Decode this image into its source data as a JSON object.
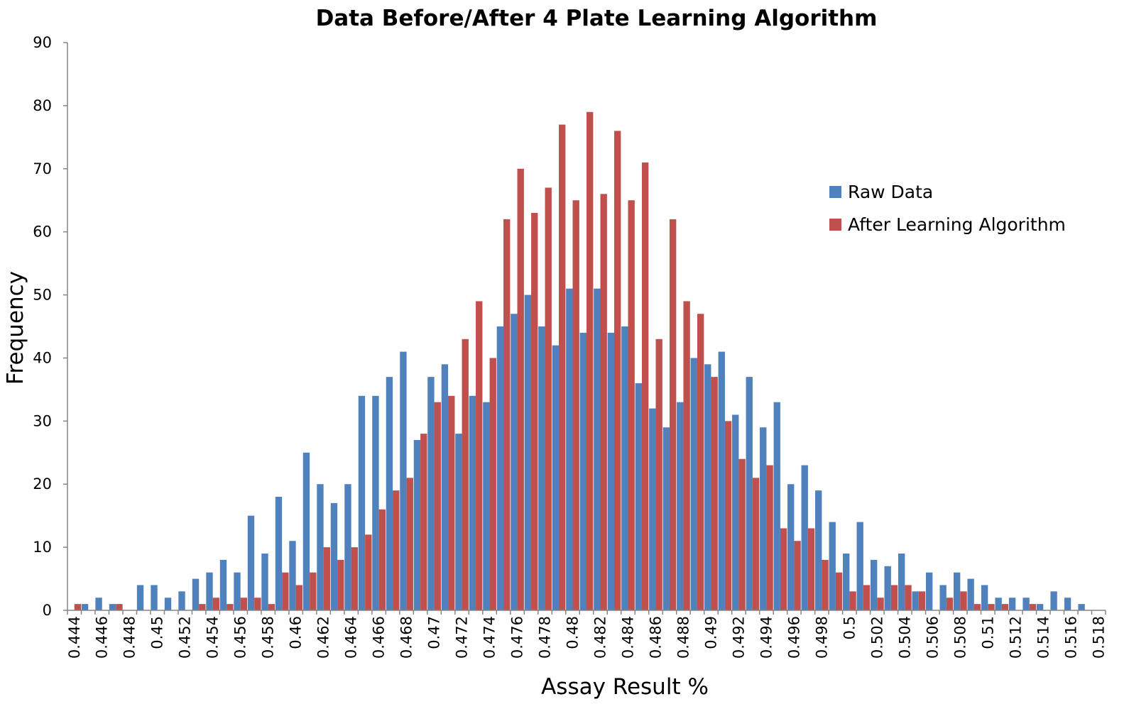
{
  "chart_data": {
    "type": "bar",
    "title": "Data Before/After 4 Plate Learning Algorithm",
    "xlabel": "Assay Result %",
    "ylabel": "Frequency",
    "ylim": [
      0,
      90
    ],
    "yticks": [
      "0",
      "10",
      "20",
      "30",
      "40",
      "50",
      "60",
      "70",
      "80",
      "90"
    ],
    "grid": false,
    "legend_position": "right",
    "categories": [
      "0.444",
      "0.445",
      "0.446",
      "0.447",
      "0.448",
      "0.449",
      "0.45",
      "0.451",
      "0.452",
      "0.453",
      "0.454",
      "0.455",
      "0.456",
      "0.457",
      "0.458",
      "0.459",
      "0.46",
      "0.461",
      "0.462",
      "0.463",
      "0.464",
      "0.465",
      "0.466",
      "0.467",
      "0.468",
      "0.469",
      "0.47",
      "0.471",
      "0.472",
      "0.473",
      "0.474",
      "0.475",
      "0.476",
      "0.477",
      "0.478",
      "0.479",
      "0.48",
      "0.481",
      "0.482",
      "0.483",
      "0.484",
      "0.485",
      "0.486",
      "0.487",
      "0.488",
      "0.489",
      "0.49",
      "0.491",
      "0.492",
      "0.493",
      "0.494",
      "0.495",
      "0.496",
      "0.497",
      "0.498",
      "0.499",
      "0.5",
      "0.501",
      "0.502",
      "0.503",
      "0.504",
      "0.505",
      "0.506",
      "0.507",
      "0.508",
      "0.509",
      "0.51",
      "0.511",
      "0.512",
      "0.513",
      "0.514",
      "0.515",
      "0.516",
      "0.517",
      "0.518"
    ],
    "tick_labels": [
      "0.444",
      "",
      "0.446",
      "",
      "0.448",
      "",
      "0.45",
      "",
      "0.452",
      "",
      "0.454",
      "",
      "0.456",
      "",
      "0.458",
      "",
      "0.46",
      "",
      "0.462",
      "",
      "0.464",
      "",
      "0.466",
      "",
      "0.468",
      "",
      "0.47",
      "",
      "0.472",
      "",
      "0.474",
      "",
      "0.476",
      "",
      "0.478",
      "",
      "0.48",
      "",
      "0.482",
      "",
      "0.484",
      "",
      "0.486",
      "",
      "0.488",
      "",
      "0.49",
      "",
      "0.492",
      "",
      "0.494",
      "",
      "0.496",
      "",
      "0.498",
      "",
      "0.5",
      "",
      "0.502",
      "",
      "0.504",
      "",
      "0.506",
      "",
      "0.508",
      "",
      "0.51",
      "",
      "0.512",
      "",
      "0.514",
      "",
      "0.516",
      "",
      "0.518"
    ],
    "series": [
      {
        "name": "Raw Data",
        "color": "#4f81bd",
        "values": [
          0,
          1,
          2,
          1,
          0,
          4,
          4,
          2,
          3,
          5,
          6,
          8,
          6,
          15,
          9,
          18,
          11,
          25,
          20,
          17,
          20,
          34,
          34,
          37,
          41,
          27,
          37,
          39,
          28,
          34,
          33,
          45,
          47,
          50,
          45,
          42,
          51,
          44,
          51,
          44,
          45,
          36,
          32,
          29,
          33,
          40,
          39,
          41,
          31,
          37,
          29,
          33,
          20,
          23,
          19,
          14,
          9,
          14,
          8,
          7,
          9,
          3,
          6,
          4,
          6,
          5,
          4,
          2,
          2,
          2,
          1,
          3,
          2,
          1,
          0
        ]
      },
      {
        "name": "After Learning Algorithm",
        "color": "#c0504d",
        "values": [
          1,
          0,
          0,
          1,
          0,
          0,
          0,
          0,
          0,
          1,
          2,
          1,
          2,
          2,
          1,
          6,
          4,
          6,
          10,
          8,
          10,
          12,
          16,
          19,
          21,
          28,
          33,
          34,
          43,
          49,
          40,
          62,
          70,
          63,
          67,
          77,
          65,
          79,
          66,
          76,
          65,
          71,
          43,
          62,
          49,
          47,
          37,
          30,
          24,
          21,
          23,
          13,
          11,
          13,
          8,
          6,
          3,
          4,
          2,
          4,
          4,
          3,
          0,
          2,
          3,
          1,
          1,
          1,
          0,
          1,
          0,
          0,
          0,
          0,
          0
        ]
      }
    ]
  }
}
